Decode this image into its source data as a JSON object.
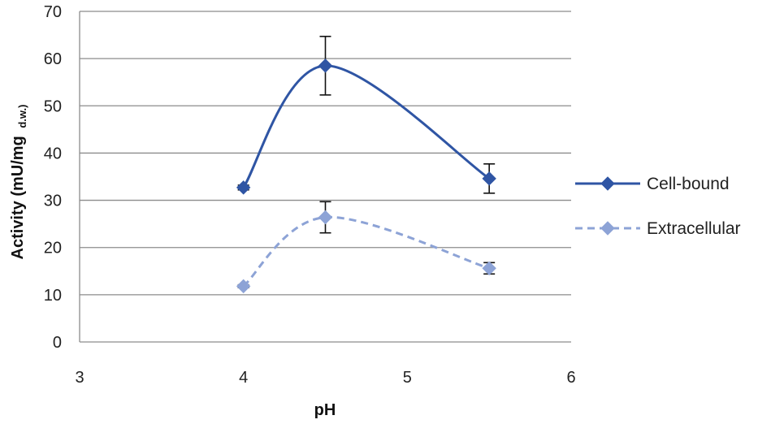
{
  "chart_data": {
    "type": "line",
    "xlabel": "pH",
    "ylabel": "Activity (mU/mg",
    "ylabel_subscript": "d.w.)",
    "xlim": [
      3,
      6
    ],
    "ylim": [
      0,
      70
    ],
    "x_ticks": [
      3,
      4,
      5,
      6
    ],
    "y_ticks": [
      0,
      10,
      20,
      30,
      40,
      50,
      60,
      70
    ],
    "grid": "horizontal",
    "legend_position": "right",
    "series": [
      {
        "name": "Cell-bound",
        "color": "#2f55a4",
        "line_style": "solid",
        "marker": "diamond",
        "points": [
          {
            "x": 4,
            "y": 32.7,
            "err": 0.5
          },
          {
            "x": 4.5,
            "y": 58.5,
            "err": 6.2
          },
          {
            "x": 5.5,
            "y": 34.6,
            "err": 3.1
          }
        ]
      },
      {
        "name": "Extracellular",
        "color": "#8da3d6",
        "line_style": "dashed",
        "marker": "diamond",
        "points": [
          {
            "x": 4,
            "y": 11.8,
            "err": 0.3
          },
          {
            "x": 4.5,
            "y": 26.4,
            "err": 3.3
          },
          {
            "x": 5.5,
            "y": 15.6,
            "err": 1.2
          }
        ]
      }
    ]
  }
}
